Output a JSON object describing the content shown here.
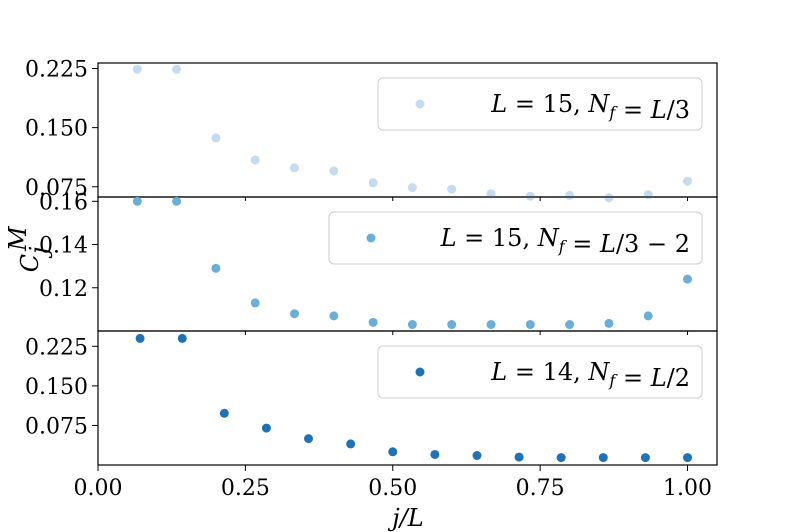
{
  "chart_data": [
    {
      "type": "scatter",
      "legend_label": "L = 15, N_f = L/3",
      "legend_placement": "top-right",
      "color": "#c6dbef",
      "x": [
        0.0667,
        0.1333,
        0.2,
        0.2667,
        0.3333,
        0.4,
        0.4667,
        0.5333,
        0.6,
        0.6667,
        0.7333,
        0.8,
        0.8667,
        0.9333,
        1.0
      ],
      "y": [
        0.224,
        0.224,
        0.137,
        0.109,
        0.099,
        0.095,
        0.08,
        0.074,
        0.072,
        0.066,
        0.063,
        0.064,
        0.061,
        0.065,
        0.082
      ],
      "ylim": [
        0.062,
        0.232
      ],
      "yticks": [
        "0.225",
        "0.150",
        "0.075"
      ],
      "ytick_values": [
        0.225,
        0.15,
        0.075
      ]
    },
    {
      "type": "scatter",
      "legend_label": "L = 15, N_f = L/3 − 2",
      "legend_placement": "top-right",
      "color": "#6baed6",
      "ylabel": "C_j^M",
      "x": [
        0.0667,
        0.1333,
        0.2,
        0.2667,
        0.3333,
        0.4,
        0.4667,
        0.5333,
        0.6,
        0.6667,
        0.7333,
        0.8,
        0.8667,
        0.9333,
        1.0
      ],
      "y": [
        0.16,
        0.16,
        0.129,
        0.113,
        0.108,
        0.107,
        0.104,
        0.103,
        0.103,
        0.103,
        0.103,
        0.103,
        0.1035,
        0.107,
        0.124
      ],
      "ylim": [
        0.1,
        0.162
      ],
      "yticks": [
        "0.16",
        "0.14",
        "0.12"
      ],
      "ytick_values": [
        0.16,
        0.14,
        0.12
      ]
    },
    {
      "type": "scatter",
      "legend_label": "L = 14, N_f = L/2",
      "legend_placement": "top-right",
      "color": "#2171b5",
      "xlabel": "j/L",
      "x": [
        0.0714,
        0.1429,
        0.2143,
        0.2857,
        0.3571,
        0.4286,
        0.5,
        0.5714,
        0.6429,
        0.7143,
        0.7857,
        0.8571,
        0.9286,
        1.0
      ],
      "y": [
        0.24,
        0.24,
        0.098,
        0.07,
        0.05,
        0.04,
        0.025,
        0.02,
        0.018,
        0.015,
        0.014,
        0.014,
        0.014,
        0.014
      ],
      "ylim": [
        0.0,
        0.254
      ],
      "yticks": [
        "0.225",
        "0.150",
        "0.075"
      ],
      "ytick_values": [
        0.225,
        0.15,
        0.075
      ],
      "xlim": [
        0.0,
        1.05
      ],
      "xticks": [
        "0.00",
        "0.25",
        "0.50",
        "0.75",
        "1.00"
      ],
      "xtick_values": [
        0.0,
        0.25,
        0.5,
        0.75,
        1.0
      ]
    }
  ]
}
